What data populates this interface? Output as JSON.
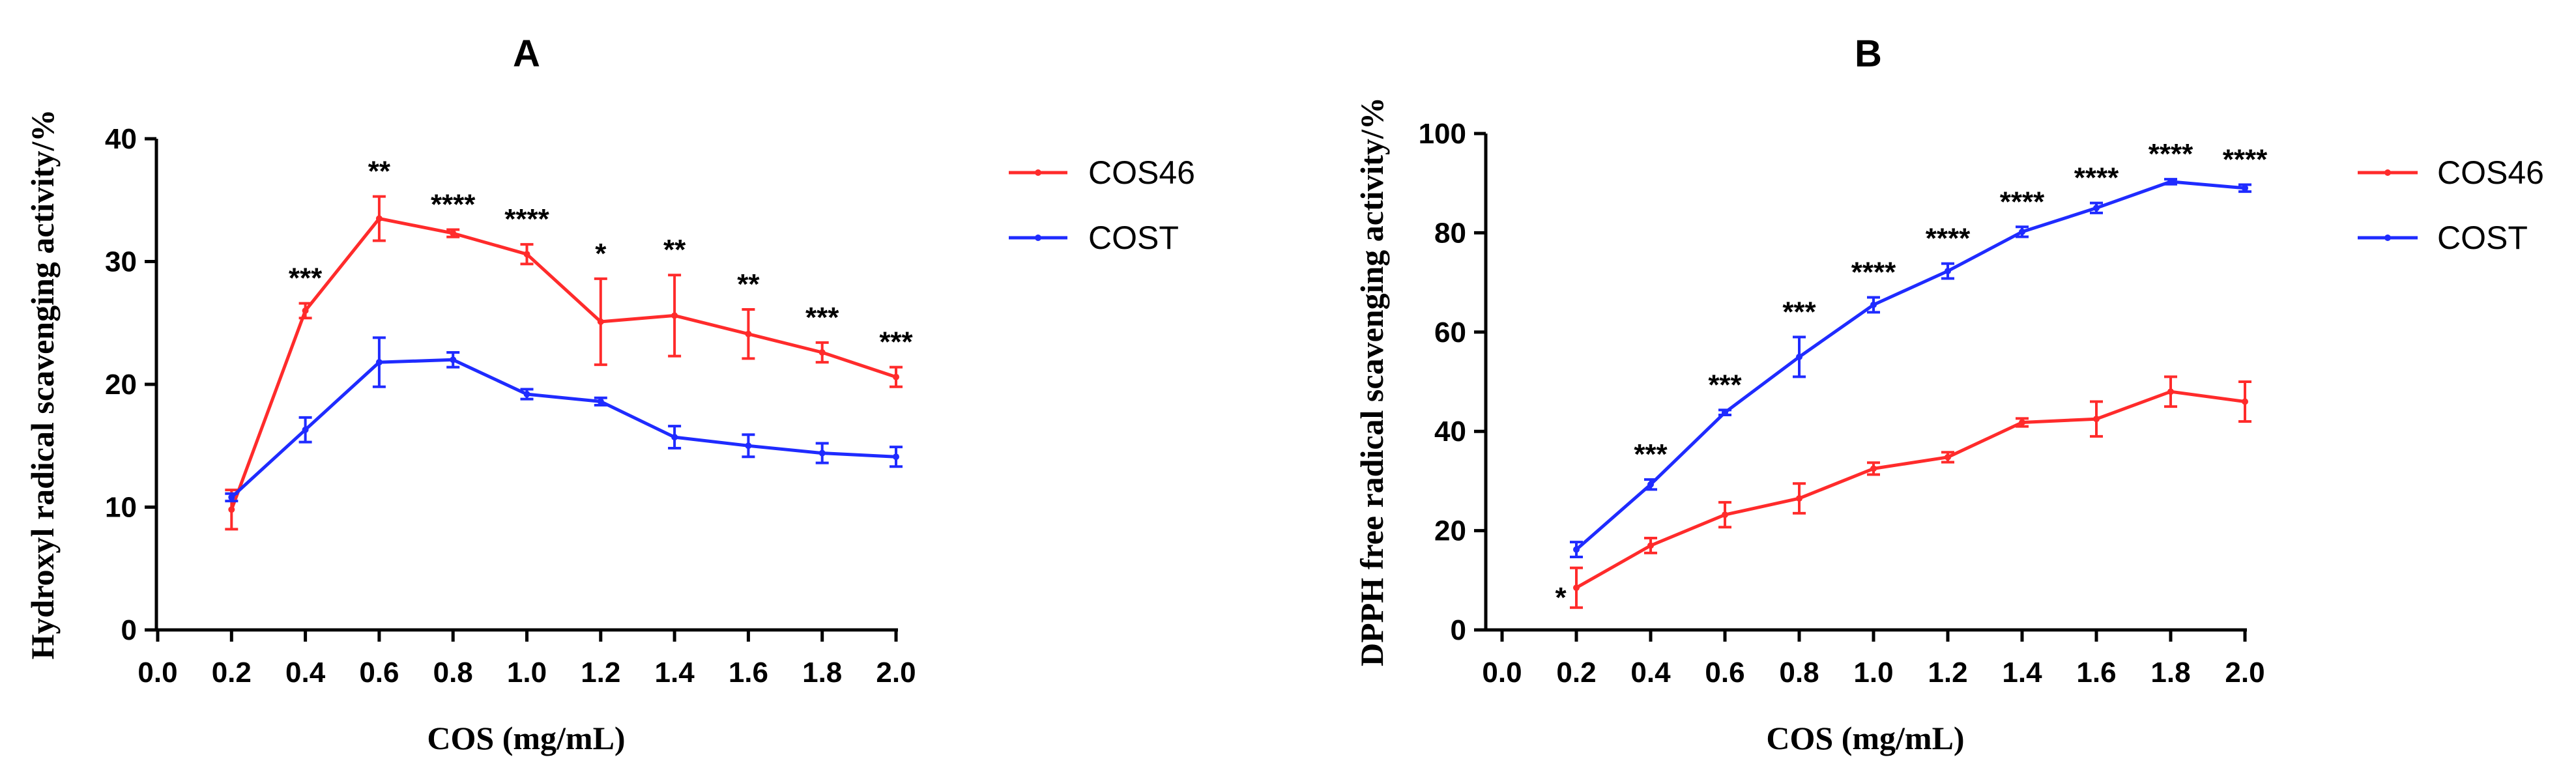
{
  "chart_data": [
    {
      "type": "line",
      "title": "A",
      "xlabel": "COS (mg/mL)",
      "ylabel": "Hydroxyl radical scavenging activity/%",
      "xlim": [
        0.0,
        2.0
      ],
      "ylim": [
        0,
        40
      ],
      "xticks": [
        "0.0",
        "0.2",
        "0.4",
        "0.6",
        "0.8",
        "1.0",
        "1.2",
        "1.4",
        "1.6",
        "1.8",
        "2.0"
      ],
      "yticks": [
        "0",
        "10",
        "20",
        "30",
        "40"
      ],
      "x": [
        0.2,
        0.4,
        0.6,
        0.8,
        1.0,
        1.2,
        1.4,
        1.6,
        1.8,
        2.0
      ],
      "legend": "right",
      "series": [
        {
          "name": "COS46",
          "color": "#ff2b2b",
          "values": [
            9.8,
            26.0,
            33.5,
            32.3,
            30.6,
            25.1,
            25.6,
            24.1,
            22.6,
            20.6
          ],
          "errors": [
            1.6,
            0.6,
            1.8,
            0.3,
            0.8,
            3.5,
            3.3,
            2.0,
            0.8,
            0.8
          ]
        },
        {
          "name": "COST",
          "color": "#1f2bff",
          "values": [
            10.8,
            16.3,
            21.8,
            22.0,
            19.2,
            18.6,
            15.7,
            15.0,
            14.4,
            14.1
          ],
          "errors": [
            0.3,
            1.0,
            2.0,
            0.6,
            0.4,
            0.3,
            0.9,
            0.9,
            0.8,
            0.8
          ]
        }
      ],
      "annotations": [
        "",
        "***",
        "**",
        "****",
        "****",
        "*",
        "**",
        "**",
        "***",
        "***"
      ]
    },
    {
      "type": "line",
      "title": "B",
      "xlabel": "COS (mg/mL)",
      "ylabel": "DPPH free radical scavenging activity/%",
      "xlim": [
        0.0,
        2.0
      ],
      "ylim": [
        0,
        100
      ],
      "xticks": [
        "0.0",
        "0.2",
        "0.4",
        "0.6",
        "0.8",
        "1.0",
        "1.2",
        "1.4",
        "1.6",
        "1.8",
        "2.0"
      ],
      "yticks": [
        "0",
        "20",
        "40",
        "60",
        "80",
        "100"
      ],
      "x": [
        0.2,
        0.4,
        0.6,
        0.8,
        1.0,
        1.2,
        1.4,
        1.6,
        1.8,
        2.0
      ],
      "legend": "right",
      "series": [
        {
          "name": "COS46",
          "color": "#ff2b2b",
          "values": [
            8.5,
            17.0,
            23.2,
            26.5,
            32.5,
            34.8,
            41.8,
            42.5,
            48.0,
            46.0
          ],
          "errors": [
            4.0,
            1.5,
            2.5,
            3.0,
            1.2,
            1.0,
            0.8,
            3.5,
            3.0,
            4.0
          ]
        },
        {
          "name": "COST",
          "color": "#1f2bff",
          "values": [
            16.2,
            29.3,
            43.8,
            55.0,
            65.5,
            72.3,
            80.2,
            85.0,
            90.3,
            89.0
          ],
          "errors": [
            1.5,
            1.0,
            0.5,
            4.0,
            1.5,
            1.5,
            1.0,
            1.0,
            0.5,
            0.7
          ]
        }
      ],
      "annotations": [
        "*",
        "***",
        "***",
        "***",
        "****",
        "****",
        "****",
        "****",
        "****",
        "****"
      ]
    }
  ]
}
